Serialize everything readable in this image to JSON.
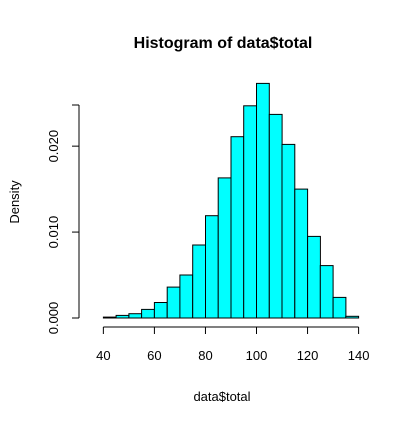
{
  "chart_data": {
    "type": "bar",
    "title": "Histogram of data$total",
    "xlabel": "data$total",
    "ylabel": "Density",
    "bar_color": "#00FFFF",
    "bin_width": 5,
    "bin_starts": [
      35,
      40,
      45,
      50,
      55,
      60,
      65,
      70,
      75,
      80,
      85,
      90,
      95,
      100,
      105,
      110,
      115,
      120,
      125,
      130,
      135
    ],
    "values": [
      0.0,
      0.0001,
      0.0003,
      0.0005,
      0.001,
      0.0018,
      0.0036,
      0.005,
      0.0085,
      0.0119,
      0.0163,
      0.0211,
      0.0247,
      0.0273,
      0.0237,
      0.0202,
      0.015,
      0.0095,
      0.0061,
      0.0024,
      0.0002
    ],
    "xlim": [
      35,
      140
    ],
    "ylim": [
      0,
      0.027
    ],
    "x_ticks": [
      40,
      60,
      80,
      100,
      120,
      140
    ],
    "x_tick_labels": [
      "40",
      "60",
      "80",
      "100",
      "120",
      "140"
    ],
    "y_ticks": [
      0,
      0.01,
      0.02
    ],
    "y_tick_labels": [
      "0.000",
      "0.010",
      "0.020"
    ]
  }
}
